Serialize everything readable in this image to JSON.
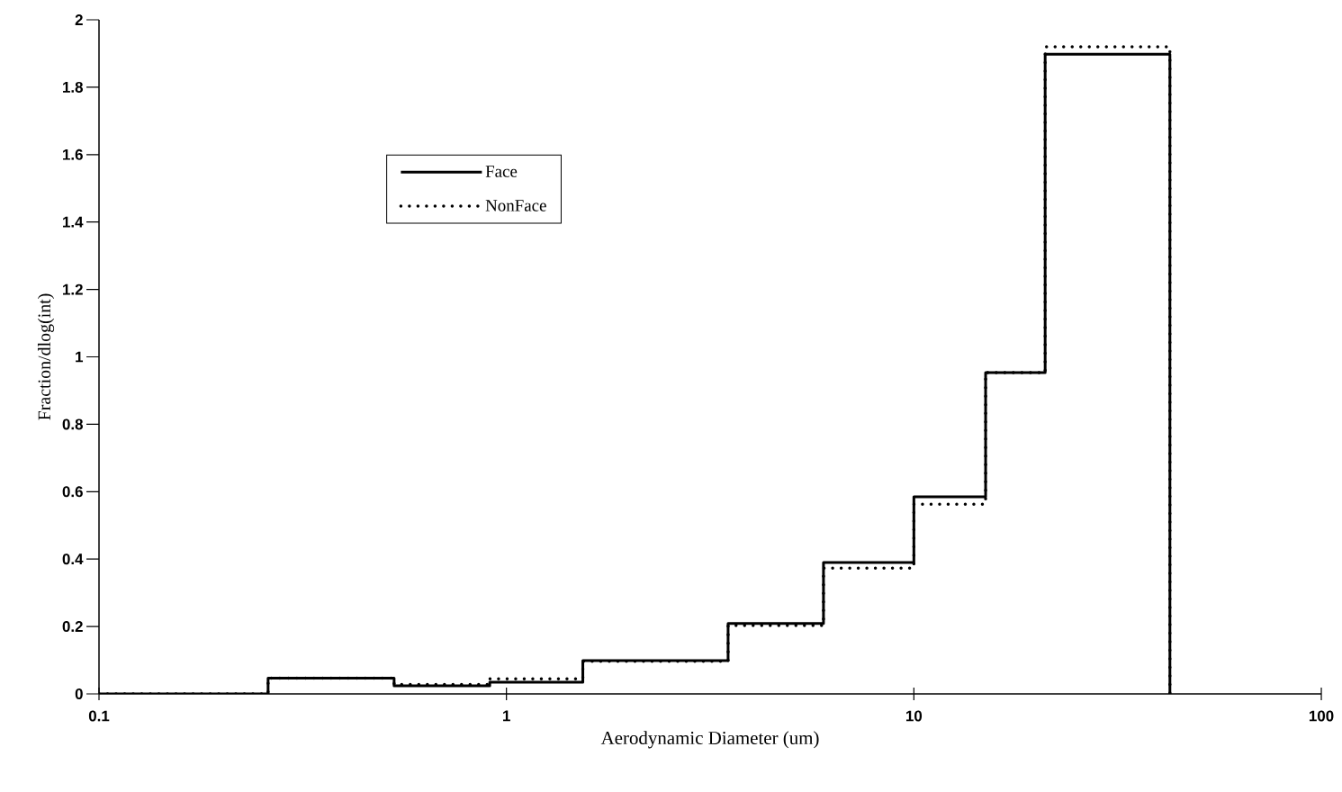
{
  "chart_data": {
    "type": "step",
    "xlabel": "Aerodynamic Diameter (um)",
    "ylabel": "Fraction/dlog(int)",
    "log": "x",
    "xlim": [
      0.1,
      100
    ],
    "xticks": [
      0.1,
      1,
      10,
      100
    ],
    "ylim": [
      0,
      2
    ],
    "yticks": [
      0,
      0.2,
      0.4,
      0.6,
      0.8,
      1,
      1.2,
      1.4,
      1.6,
      1.8,
      2
    ],
    "x": [
      0.1,
      0.26,
      0.53,
      0.91,
      1.54,
      3.5,
      6.0,
      10,
      15,
      21,
      42.5
    ],
    "series": [
      {
        "name": "Face",
        "color": "#000000",
        "line_style": "solid",
        "values": [
          0,
          0.047,
          0.024,
          0.035,
          0.099,
          0.209,
          0.39,
          0.585,
          0.953,
          1.898,
          0
        ]
      },
      {
        "name": "NonFace",
        "color": "#000000",
        "line_style": "dotted",
        "values": [
          0,
          0.047,
          0.028,
          0.045,
          0.097,
          0.203,
          0.373,
          0.563,
          0.953,
          1.92,
          0
        ]
      }
    ],
    "legend": "top left",
    "grid": false
  }
}
